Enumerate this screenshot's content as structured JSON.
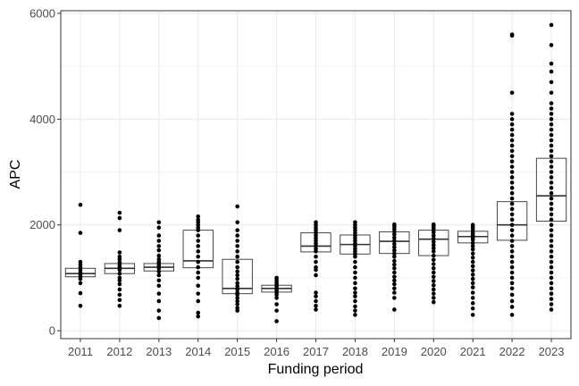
{
  "chart_data": {
    "type": "boxplot",
    "xlabel": "Funding period",
    "ylabel": "APC",
    "ylim": [
      -150,
      6050
    ],
    "yticks": [
      0,
      2000,
      4000,
      6000
    ],
    "grid": true,
    "legend": "none",
    "colors": {
      "panel_background": "#ffffff",
      "grid": "#ebebeb",
      "panel_border": "#333333",
      "points": "#000000",
      "box": "#333333"
    },
    "categories": [
      "2011",
      "2012",
      "2013",
      "2014",
      "2015",
      "2016",
      "2017",
      "2018",
      "2019",
      "2020",
      "2021",
      "2022",
      "2023"
    ],
    "boxes": [
      {
        "q1": 1020,
        "median": 1080,
        "q3": 1180
      },
      {
        "q1": 1080,
        "median": 1180,
        "q3": 1270
      },
      {
        "q1": 1130,
        "median": 1200,
        "q3": 1270
      },
      {
        "q1": 1190,
        "median": 1320,
        "q3": 1900
      },
      {
        "q1": 700,
        "median": 800,
        "q3": 1350
      },
      {
        "q1": 730,
        "median": 800,
        "q3": 860
      },
      {
        "q1": 1490,
        "median": 1600,
        "q3": 1850
      },
      {
        "q1": 1450,
        "median": 1630,
        "q3": 1810
      },
      {
        "q1": 1460,
        "median": 1690,
        "q3": 1870
      },
      {
        "q1": 1420,
        "median": 1730,
        "q3": 1900
      },
      {
        "q1": 1660,
        "median": 1780,
        "q3": 1880
      },
      {
        "q1": 1710,
        "median": 2000,
        "q3": 2440
      },
      {
        "q1": 2070,
        "median": 2550,
        "q3": 3260
      }
    ],
    "points": [
      [
        470,
        710,
        900,
        980,
        1020,
        1060,
        1100,
        1150,
        1200,
        1250,
        1300,
        1850,
        2380
      ],
      [
        470,
        580,
        680,
        780,
        880,
        950,
        1000,
        1080,
        1150,
        1200,
        1240,
        1290,
        1350,
        1400,
        1480,
        1900,
        2130,
        2230
      ],
      [
        240,
        380,
        560,
        700,
        850,
        950,
        1050,
        1120,
        1180,
        1230,
        1270,
        1300,
        1350,
        1420,
        1520,
        1600,
        1700,
        1800,
        1950,
        2050
      ],
      [
        270,
        340,
        560,
        700,
        850,
        1000,
        1100,
        1200,
        1300,
        1400,
        1500,
        1600,
        1700,
        1800,
        1900,
        1950,
        2000,
        2050,
        2100,
        2160
      ],
      [
        380,
        430,
        500,
        560,
        620,
        680,
        720,
        780,
        840,
        900,
        980,
        1050,
        1120,
        1200,
        1300,
        1400,
        1500,
        1600,
        1700,
        1800,
        1900,
        2050,
        2350
      ],
      [
        180,
        380,
        500,
        620,
        680,
        720,
        760,
        800,
        840,
        880,
        920,
        960,
        1000
      ],
      [
        400,
        470,
        560,
        650,
        720,
        1050,
        1150,
        1200,
        1300,
        1400,
        1500,
        1550,
        1600,
        1650,
        1700,
        1750,
        1800,
        1850,
        1900,
        1950,
        2000,
        2050
      ],
      [
        300,
        380,
        460,
        560,
        650,
        720,
        800,
        900,
        1000,
        1100,
        1200,
        1300,
        1400,
        1450,
        1500,
        1550,
        1600,
        1650,
        1700,
        1750,
        1800,
        1850,
        1900,
        1950,
        2000,
        2050
      ],
      [
        400,
        620,
        720,
        800,
        880,
        950,
        1020,
        1100,
        1180,
        1250,
        1320,
        1400,
        1460,
        1520,
        1580,
        1640,
        1700,
        1760,
        1820,
        1870,
        1920,
        1970,
        2010
      ],
      [
        540,
        620,
        700,
        780,
        860,
        940,
        1020,
        1100,
        1180,
        1260,
        1340,
        1420,
        1500,
        1560,
        1620,
        1680,
        1740,
        1800,
        1860,
        1900,
        1940,
        1980,
        2010
      ],
      [
        300,
        420,
        520,
        620,
        720,
        820,
        900,
        980,
        1060,
        1140,
        1220,
        1300,
        1380,
        1460,
        1540,
        1600,
        1660,
        1720,
        1760,
        1800,
        1840,
        1880,
        1920,
        1960,
        2000
      ],
      [
        300,
        450,
        560,
        680,
        800,
        900,
        1000,
        1100,
        1200,
        1300,
        1400,
        1500,
        1600,
        1700,
        1800,
        1900,
        2000,
        2100,
        2200,
        2300,
        2400,
        2500,
        2600,
        2700,
        2800,
        2900,
        3000,
        3100,
        3200,
        3300,
        3400,
        3500,
        3600,
        3700,
        3800,
        3900,
        4000,
        4100,
        4500,
        5580,
        5600
      ],
      [
        400,
        500,
        600,
        700,
        800,
        900,
        1000,
        1100,
        1200,
        1300,
        1400,
        1500,
        1600,
        1700,
        1800,
        1900,
        2000,
        2100,
        2200,
        2300,
        2400,
        2500,
        2600,
        2700,
        2800,
        2900,
        3000,
        3100,
        3200,
        3300,
        3400,
        3500,
        3600,
        3700,
        3800,
        3900,
        4000,
        4100,
        4200,
        4300,
        4500,
        4700,
        4900,
        5050,
        5400,
        5780
      ]
    ]
  }
}
